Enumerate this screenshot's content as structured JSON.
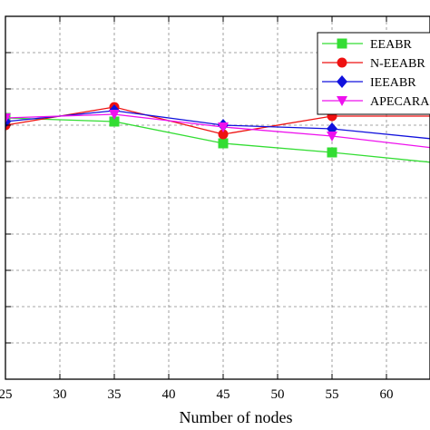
{
  "chart_data": {
    "type": "line",
    "xlabel": "Number of nodes",
    "ylabel": "",
    "x_ticks": [
      25,
      30,
      35,
      40,
      45,
      50,
      55,
      60
    ],
    "xlim": [
      25,
      64
    ],
    "ylim": [
      0,
      10
    ],
    "grid": true,
    "legend_position": "top-right",
    "x": [
      25,
      35,
      45,
      55,
      65
    ],
    "series": [
      {
        "name": "EEABR",
        "color": "#33dd33",
        "marker": "square",
        "values": [
          7.2,
          7.1,
          6.5,
          6.25,
          5.95
        ]
      },
      {
        "name": "N-EEABR",
        "color": "#ee1111",
        "marker": "circle",
        "values": [
          7.0,
          7.5,
          6.75,
          7.25,
          7.25
        ]
      },
      {
        "name": "IEEABR",
        "color": "#1111dd",
        "marker": "diamond",
        "values": [
          7.1,
          7.4,
          7.0,
          6.9,
          6.6
        ]
      },
      {
        "name": "APECARA",
        "color": "#ee11ee",
        "marker": "triangle-down",
        "values": [
          7.2,
          7.3,
          6.95,
          6.7,
          6.35
        ]
      }
    ]
  }
}
